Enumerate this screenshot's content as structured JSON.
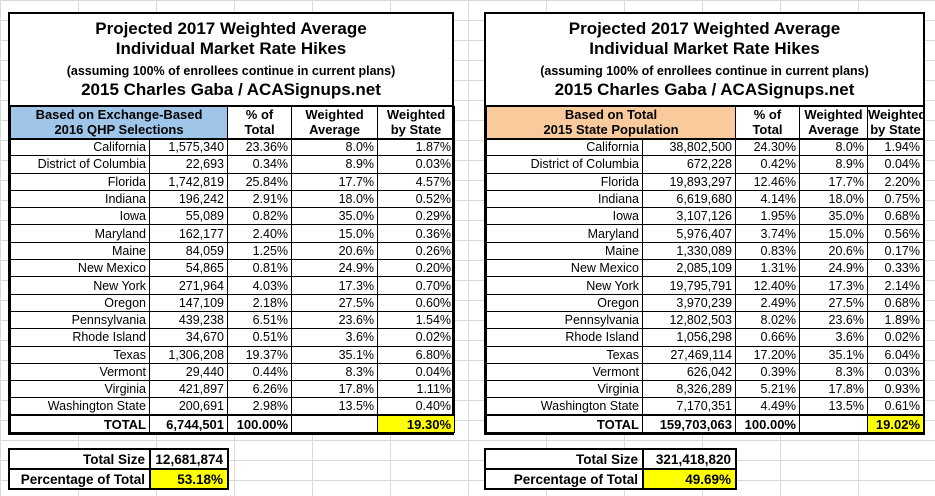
{
  "title": {
    "line1": "Projected 2017 Weighted Average",
    "line2": "Individual Market Rate Hikes",
    "subtitle": "(assuming 100% of enrollees continue in current plans)",
    "byline": "2015 Charles Gaba / ACASignups.net"
  },
  "colors": {
    "qhp_header_fill": "#9fc5e8",
    "population_header_fill": "#f9cb9c",
    "highlight_fill": "#ffff00",
    "grid_line": "#d9d9d9",
    "cell_border": "#000000"
  },
  "left_table": {
    "header_label": "Based on Exchange-Based\n2016 QHP Selections",
    "col_headers": [
      "% of\nTotal",
      "Weighted\nAverage",
      "Weighted\nby State"
    ],
    "rows": [
      [
        "California",
        "1,575,340",
        "23.36%",
        "8.0%",
        "1.87%"
      ],
      [
        "District of Columbia",
        "22,693",
        "0.34%",
        "8.9%",
        "0.03%"
      ],
      [
        "Florida",
        "1,742,819",
        "25.84%",
        "17.7%",
        "4.57%"
      ],
      [
        "Indiana",
        "196,242",
        "2.91%",
        "18.0%",
        "0.52%"
      ],
      [
        "Iowa",
        "55,089",
        "0.82%",
        "35.0%",
        "0.29%"
      ],
      [
        "Maryland",
        "162,177",
        "2.40%",
        "15.0%",
        "0.36%"
      ],
      [
        "Maine",
        "84,059",
        "1.25%",
        "20.6%",
        "0.26%"
      ],
      [
        "New Mexico",
        "54,865",
        "0.81%",
        "24.9%",
        "0.20%"
      ],
      [
        "New York",
        "271,964",
        "4.03%",
        "17.3%",
        "0.70%"
      ],
      [
        "Oregon",
        "147,109",
        "2.18%",
        "27.5%",
        "0.60%"
      ],
      [
        "Pennsylvania",
        "439,238",
        "6.51%",
        "23.6%",
        "1.54%"
      ],
      [
        "Rhode Island",
        "34,670",
        "0.51%",
        "3.6%",
        "0.02%"
      ],
      [
        "Texas",
        "1,306,208",
        "19.37%",
        "35.1%",
        "6.80%"
      ],
      [
        "Vermont",
        "29,440",
        "0.44%",
        "8.3%",
        "0.04%"
      ],
      [
        "Virginia",
        "421,897",
        "6.26%",
        "17.8%",
        "1.11%"
      ],
      [
        "Washington State",
        "200,691",
        "2.98%",
        "13.5%",
        "0.40%"
      ]
    ],
    "total_row": {
      "label": "TOTAL",
      "value": "6,744,501",
      "pct": "100.00%",
      "weighted_avg": "",
      "weighted_by_state": "19.30%"
    },
    "summary": {
      "total_size_label": "Total Size",
      "total_size_value": "12,681,874",
      "pct_label": "Percentage of Total",
      "pct_value": "53.18%"
    }
  },
  "right_table": {
    "header_label": "Based on Total\n2015 State Population",
    "col_headers": [
      "% of\nTotal",
      "Weighted\nAverage",
      "Weighted\nby State"
    ],
    "rows": [
      [
        "California",
        "38,802,500",
        "24.30%",
        "8.0%",
        "1.94%"
      ],
      [
        "District of Columbia",
        "672,228",
        "0.42%",
        "8.9%",
        "0.04%"
      ],
      [
        "Florida",
        "19,893,297",
        "12.46%",
        "17.7%",
        "2.20%"
      ],
      [
        "Indiana",
        "6,619,680",
        "4.14%",
        "18.0%",
        "0.75%"
      ],
      [
        "Iowa",
        "3,107,126",
        "1.95%",
        "35.0%",
        "0.68%"
      ],
      [
        "Maryland",
        "5,976,407",
        "3.74%",
        "15.0%",
        "0.56%"
      ],
      [
        "Maine",
        "1,330,089",
        "0.83%",
        "20.6%",
        "0.17%"
      ],
      [
        "New Mexico",
        "2,085,109",
        "1.31%",
        "24.9%",
        "0.33%"
      ],
      [
        "New York",
        "19,795,791",
        "12.40%",
        "17.3%",
        "2.14%"
      ],
      [
        "Oregon",
        "3,970,239",
        "2.49%",
        "27.5%",
        "0.68%"
      ],
      [
        "Pennsylvania",
        "12,802,503",
        "8.02%",
        "23.6%",
        "1.89%"
      ],
      [
        "Rhode Island",
        "1,056,298",
        "0.66%",
        "3.6%",
        "0.02%"
      ],
      [
        "Texas",
        "27,469,114",
        "17.20%",
        "35.1%",
        "6.04%"
      ],
      [
        "Vermont",
        "626,042",
        "0.39%",
        "8.3%",
        "0.03%"
      ],
      [
        "Virginia",
        "8,326,289",
        "5.21%",
        "17.8%",
        "0.93%"
      ],
      [
        "Washington State",
        "7,170,351",
        "4.49%",
        "13.5%",
        "0.61%"
      ]
    ],
    "total_row": {
      "label": "TOTAL",
      "value": "159,703,063",
      "pct": "100.00%",
      "weighted_avg": "",
      "weighted_by_state": "19.02%"
    },
    "summary": {
      "total_size_label": "Total Size",
      "total_size_value": "321,418,820",
      "pct_label": "Percentage of Total",
      "pct_value": "49.69%"
    }
  }
}
